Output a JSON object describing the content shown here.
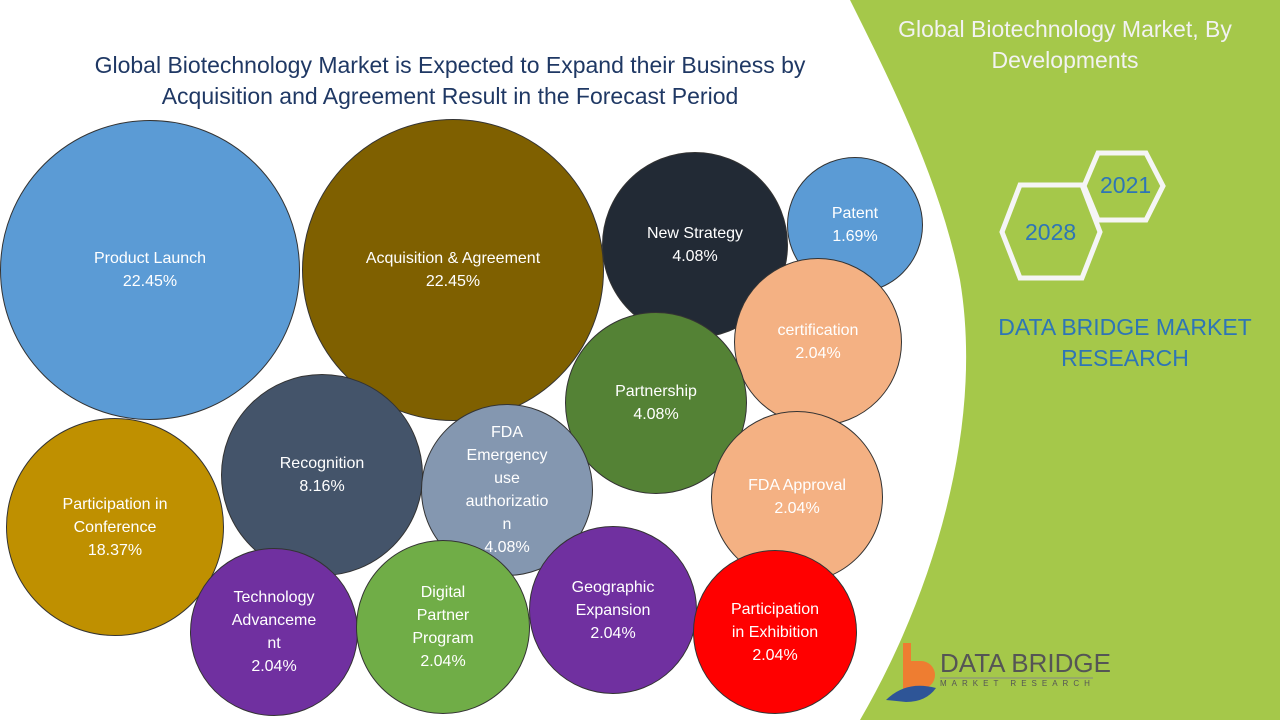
{
  "title": "Global Biotechnology Market is Expected to Expand their Business by Acquisition and Agreement Result in the Forecast Period",
  "side_title": "Global Biotechnology Market, By Developments",
  "years": [
    "2021",
    "2028"
  ],
  "brand_text": "DATA BRIDGE MARKET RESEARCH",
  "logo": {
    "name": "DATA BRIDGE",
    "sub": "MARKET RESEARCH"
  },
  "colors": {
    "green": "#a5c84a",
    "title": "#1f3864",
    "brand": "#2e75b6"
  },
  "chart_data": {
    "type": "bubble",
    "title": "Global Biotechnology Market is Expected to Expand their Business by Acquisition and Agreement Result in the Forecast Period",
    "unit": "%",
    "items": [
      {
        "label": "Product Launch",
        "value": 22.45,
        "text": "22.45%",
        "color": "#5b9bd5"
      },
      {
        "label": "Acquisition & Agreement",
        "value": 22.45,
        "text": "22.45%",
        "color": "#7f6000"
      },
      {
        "label": "New Strategy",
        "value": 4.08,
        "text": "4.08%",
        "color": "#222a35"
      },
      {
        "label": "Patent",
        "value": 1.69,
        "text": "1.69%",
        "color": "#5b9bd5"
      },
      {
        "label": "certification",
        "value": 2.04,
        "text": "2.04%",
        "color": "#f4b183"
      },
      {
        "label": "Partnership",
        "value": 4.08,
        "text": "4.08%",
        "color": "#548235"
      },
      {
        "label": "Recognition",
        "value": 8.16,
        "text": "8.16%",
        "color": "#44546a"
      },
      {
        "label": "FDA\nEmergency\nuse\nauthorizatio\nn",
        "value": 4.08,
        "text": "4.08%",
        "color": "#8497b0"
      },
      {
        "label": "FDA Approval",
        "value": 2.04,
        "text": "2.04%",
        "color": "#f4b183"
      },
      {
        "label": "Participation in\nConference",
        "value": 18.37,
        "text": "18.37%",
        "color": "#bf9000"
      },
      {
        "label": "Technology\nAdvanceme\nnt",
        "value": 2.04,
        "text": "2.04%",
        "color": "#7030a0"
      },
      {
        "label": "Digital\nPartner\nProgram",
        "value": 2.04,
        "text": "2.04%",
        "color": "#70ad47"
      },
      {
        "label": "Geographic\nExpansion",
        "value": 2.04,
        "text": "2.04%",
        "color": "#7030a0"
      },
      {
        "label": "Participation\nin Exhibition",
        "value": 2.04,
        "text": "2.04%",
        "color": "#ff0000"
      }
    ]
  }
}
